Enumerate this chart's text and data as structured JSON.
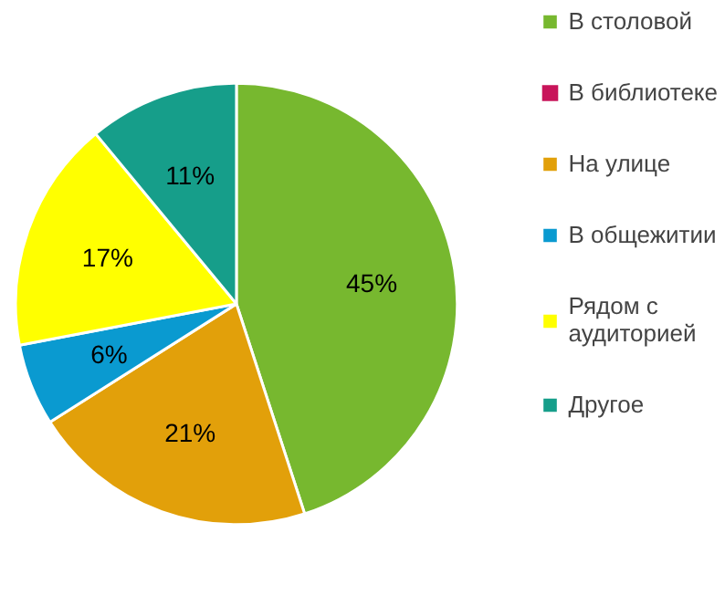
{
  "chart_data": {
    "type": "pie",
    "categories": [
      "В столовой",
      "В библиотеке",
      "На улице",
      "В общежитии",
      "Рядом с\nаудиторией",
      "Другое"
    ],
    "values": [
      45,
      0,
      21,
      6,
      17,
      11
    ],
    "colors": [
      "#77b82f",
      "#c8145a",
      "#e2a00a",
      "#0a9ad0",
      "#ffff00",
      "#169e8a"
    ],
    "value_labels": [
      "45%",
      null,
      "21%",
      "6%",
      "17%",
      "11%"
    ],
    "legend": "right"
  }
}
